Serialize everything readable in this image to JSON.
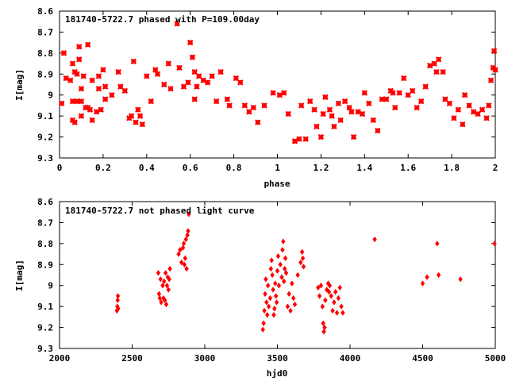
{
  "chart_data": [
    {
      "type": "scatter",
      "title": "181740-5722.7 phased with P=109.00day",
      "xlabel": "phase",
      "ylabel": "I[mag]",
      "xlim": [
        0,
        2
      ],
      "ylim": [
        8.6,
        9.3
      ],
      "y_inverted": true,
      "grid": false,
      "x_ticks": [
        "0",
        "0.2",
        "0.4",
        "0.6",
        "0.8",
        "1",
        "1.2",
        "1.4",
        "1.6",
        "1.8",
        "2"
      ],
      "y_ticks": [
        "8.6",
        "8.7",
        "8.8",
        "8.9",
        "9",
        "9.1",
        "9.2",
        "9.3"
      ],
      "marker": "star",
      "color": "#ff0000",
      "points": [
        [
          0.01,
          9.04
        ],
        [
          0.02,
          8.8
        ],
        [
          0.03,
          8.92
        ],
        [
          0.05,
          8.93
        ],
        [
          0.06,
          8.85
        ],
        [
          0.06,
          9.03
        ],
        [
          0.06,
          9.12
        ],
        [
          0.07,
          8.89
        ],
        [
          0.07,
          9.13
        ],
        [
          0.08,
          9.03
        ],
        [
          0.08,
          8.9
        ],
        [
          0.09,
          8.77
        ],
        [
          0.09,
          8.83
        ],
        [
          0.1,
          8.97
        ],
        [
          0.1,
          9.03
        ],
        [
          0.1,
          9.1
        ],
        [
          0.11,
          8.91
        ],
        [
          0.12,
          9.06
        ],
        [
          0.13,
          8.76
        ],
        [
          0.13,
          9.06
        ],
        [
          0.14,
          9.07
        ],
        [
          0.15,
          8.93
        ],
        [
          0.15,
          9.12
        ],
        [
          0.17,
          9.08
        ],
        [
          0.18,
          8.91
        ],
        [
          0.18,
          8.97
        ],
        [
          0.19,
          9.07
        ],
        [
          0.2,
          8.88
        ],
        [
          0.21,
          8.96
        ],
        [
          0.21,
          9.02
        ],
        [
          0.24,
          9.0
        ],
        [
          0.27,
          8.89
        ],
        [
          0.28,
          8.96
        ],
        [
          0.3,
          8.98
        ],
        [
          0.32,
          9.11
        ],
        [
          0.33,
          9.1
        ],
        [
          0.34,
          8.84
        ],
        [
          0.35,
          9.13
        ],
        [
          0.36,
          9.07
        ],
        [
          0.37,
          9.1
        ],
        [
          0.38,
          9.14
        ],
        [
          0.4,
          8.91
        ],
        [
          0.42,
          9.03
        ],
        [
          0.44,
          8.88
        ],
        [
          0.45,
          8.9
        ],
        [
          0.48,
          8.95
        ],
        [
          0.5,
          8.85
        ],
        [
          0.51,
          8.97
        ],
        [
          0.54,
          8.66
        ],
        [
          0.55,
          8.87
        ],
        [
          0.57,
          8.96
        ],
        [
          0.59,
          8.94
        ],
        [
          0.6,
          8.75
        ],
        [
          0.61,
          8.82
        ],
        [
          0.62,
          8.89
        ],
        [
          0.62,
          9.02
        ],
        [
          0.63,
          8.96
        ],
        [
          0.64,
          8.91
        ],
        [
          0.66,
          8.93
        ],
        [
          0.68,
          8.94
        ],
        [
          0.7,
          8.91
        ],
        [
          0.72,
          9.03
        ],
        [
          0.74,
          8.89
        ],
        [
          0.77,
          9.02
        ],
        [
          0.78,
          9.05
        ],
        [
          0.81,
          8.92
        ],
        [
          0.83,
          8.94
        ],
        [
          0.85,
          9.05
        ],
        [
          0.87,
          9.08
        ],
        [
          0.89,
          9.06
        ],
        [
          0.91,
          9.13
        ],
        [
          0.94,
          9.05
        ],
        [
          0.98,
          8.99
        ],
        [
          1.01,
          9.0
        ],
        [
          1.03,
          8.99
        ],
        [
          1.05,
          9.09
        ],
        [
          1.08,
          9.22
        ],
        [
          1.1,
          9.21
        ],
        [
          1.11,
          9.05
        ],
        [
          1.13,
          9.21
        ],
        [
          1.15,
          9.03
        ],
        [
          1.17,
          9.07
        ],
        [
          1.18,
          9.15
        ],
        [
          1.2,
          9.2
        ],
        [
          1.21,
          9.09
        ],
        [
          1.22,
          9.01
        ],
        [
          1.24,
          9.07
        ],
        [
          1.25,
          9.1
        ],
        [
          1.26,
          9.15
        ],
        [
          1.28,
          9.04
        ],
        [
          1.29,
          9.12
        ],
        [
          1.31,
          9.03
        ],
        [
          1.33,
          9.06
        ],
        [
          1.34,
          9.08
        ],
        [
          1.35,
          9.2
        ],
        [
          1.37,
          9.08
        ],
        [
          1.39,
          9.09
        ],
        [
          1.4,
          8.99
        ],
        [
          1.42,
          9.04
        ],
        [
          1.44,
          9.12
        ],
        [
          1.46,
          9.17
        ],
        [
          1.48,
          9.02
        ],
        [
          1.5,
          9.02
        ],
        [
          1.52,
          8.98
        ],
        [
          1.53,
          8.99
        ],
        [
          1.54,
          9.06
        ],
        [
          1.56,
          8.99
        ],
        [
          1.58,
          8.92
        ],
        [
          1.6,
          9.0
        ],
        [
          1.62,
          8.98
        ],
        [
          1.64,
          9.06
        ],
        [
          1.66,
          9.03
        ],
        [
          1.68,
          8.96
        ],
        [
          1.7,
          8.86
        ],
        [
          1.72,
          8.85
        ],
        [
          1.73,
          8.89
        ],
        [
          1.74,
          8.83
        ],
        [
          1.76,
          8.89
        ],
        [
          1.77,
          9.02
        ],
        [
          1.79,
          9.04
        ],
        [
          1.81,
          9.11
        ],
        [
          1.83,
          9.07
        ],
        [
          1.85,
          9.14
        ],
        [
          1.86,
          9.0
        ],
        [
          1.88,
          9.05
        ],
        [
          1.9,
          9.08
        ],
        [
          1.92,
          9.09
        ],
        [
          1.94,
          9.07
        ],
        [
          1.96,
          9.11
        ],
        [
          1.97,
          9.05
        ],
        [
          1.98,
          8.93
        ],
        [
          1.99,
          8.87
        ],
        [
          2.0,
          8.88
        ],
        [
          1.995,
          8.79
        ]
      ]
    },
    {
      "type": "scatter",
      "title": "181740-5722.7 not phased light curve",
      "xlabel": "hjd0",
      "ylabel": "I[mag]",
      "xlim": [
        2000,
        5000
      ],
      "ylim": [
        8.6,
        9.3
      ],
      "y_inverted": true,
      "grid": false,
      "x_ticks": [
        "2000",
        "2500",
        "3000",
        "3500",
        "4000",
        "4500",
        "5000"
      ],
      "y_ticks": [
        "8.6",
        "8.7",
        "8.8",
        "8.9",
        "9",
        "9.1",
        "9.2",
        "9.3"
      ],
      "marker": "diamond",
      "color": "#ff0000",
      "points": [
        [
          2395,
          9.12
        ],
        [
          2398,
          9.1
        ],
        [
          2400,
          9.07
        ],
        [
          2402,
          9.05
        ],
        [
          2404,
          9.11
        ],
        [
          2680,
          8.94
        ],
        [
          2685,
          9.04
        ],
        [
          2690,
          9.06
        ],
        [
          2695,
          8.97
        ],
        [
          2700,
          9.08
        ],
        [
          2710,
          9.0
        ],
        [
          2715,
          9.06
        ],
        [
          2720,
          8.98
        ],
        [
          2725,
          9.07
        ],
        [
          2730,
          8.94
        ],
        [
          2735,
          9.09
        ],
        [
          2740,
          9.0
        ],
        [
          2745,
          8.96
        ],
        [
          2750,
          9.02
        ],
        [
          2755,
          8.97
        ],
        [
          2760,
          8.92
        ],
        [
          2820,
          8.85
        ],
        [
          2830,
          8.83
        ],
        [
          2840,
          8.89
        ],
        [
          2850,
          8.82
        ],
        [
          2855,
          8.8
        ],
        [
          2860,
          8.9
        ],
        [
          2865,
          8.87
        ],
        [
          2870,
          8.78
        ],
        [
          2875,
          8.92
        ],
        [
          2880,
          8.76
        ],
        [
          2885,
          8.74
        ],
        [
          2890,
          8.66
        ],
        [
          3400,
          9.21
        ],
        [
          3405,
          9.18
        ],
        [
          3410,
          9.12
        ],
        [
          3415,
          9.04
        ],
        [
          3420,
          8.97
        ],
        [
          3425,
          9.08
        ],
        [
          3430,
          9.14
        ],
        [
          3435,
          9.0
        ],
        [
          3440,
          9.1
        ],
        [
          3450,
          9.06
        ],
        [
          3455,
          8.92
        ],
        [
          3460,
          8.88
        ],
        [
          3465,
          8.95
        ],
        [
          3470,
          9.02
        ],
        [
          3475,
          9.14
        ],
        [
          3480,
          9.11
        ],
        [
          3485,
          8.99
        ],
        [
          3490,
          9.05
        ],
        [
          3495,
          9.08
        ],
        [
          3500,
          8.93
        ],
        [
          3505,
          8.86
        ],
        [
          3510,
          9.0
        ],
        [
          3520,
          8.9
        ],
        [
          3530,
          8.96
        ],
        [
          3535,
          8.83
        ],
        [
          3540,
          8.79
        ],
        [
          3545,
          8.98
        ],
        [
          3550,
          8.92
        ],
        [
          3555,
          8.87
        ],
        [
          3560,
          8.94
        ],
        [
          3570,
          9.1
        ],
        [
          3580,
          9.04
        ],
        [
          3590,
          9.12
        ],
        [
          3600,
          8.99
        ],
        [
          3610,
          9.06
        ],
        [
          3620,
          9.09
        ],
        [
          3640,
          8.95
        ],
        [
          3660,
          8.89
        ],
        [
          3670,
          8.84
        ],
        [
          3675,
          8.87
        ],
        [
          3680,
          8.91
        ],
        [
          3780,
          9.01
        ],
        [
          3790,
          9.05
        ],
        [
          3800,
          9.0
        ],
        [
          3810,
          9.1
        ],
        [
          3815,
          9.18
        ],
        [
          3820,
          9.22
        ],
        [
          3825,
          9.2
        ],
        [
          3830,
          9.07
        ],
        [
          3840,
          9.02
        ],
        [
          3850,
          8.99
        ],
        [
          3855,
          9.03
        ],
        [
          3860,
          9.0
        ],
        [
          3870,
          9.05
        ],
        [
          3880,
          9.12
        ],
        [
          3890,
          9.08
        ],
        [
          3900,
          9.03
        ],
        [
          3910,
          9.13
        ],
        [
          3920,
          9.06
        ],
        [
          3930,
          9.01
        ],
        [
          3940,
          9.1
        ],
        [
          3950,
          9.13
        ],
        [
          4170,
          8.78
        ],
        [
          4500,
          8.99
        ],
        [
          4530,
          8.96
        ],
        [
          4600,
          8.8
        ],
        [
          4610,
          8.95
        ],
        [
          4760,
          8.97
        ],
        [
          4995,
          8.8
        ]
      ]
    }
  ]
}
